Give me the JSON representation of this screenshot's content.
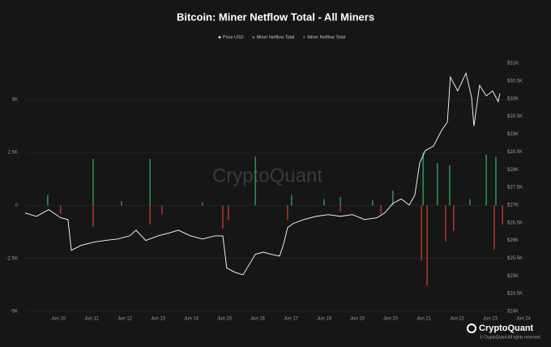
{
  "chart_data": {
    "type": "combo",
    "title": "Bitcoin: Miner Netflow Total - All Miners",
    "watermark": "CryptoQuant",
    "brand": "CryptoQuant",
    "copyright": "© CryptoQuant All rights reserved.",
    "grid": true,
    "xlim": [
      9,
      24
    ],
    "xticks": [
      {
        "value": 10,
        "label": "Jun 10"
      },
      {
        "value": 11,
        "label": "Jun 11"
      },
      {
        "value": 12,
        "label": "Jun 12"
      },
      {
        "value": 13,
        "label": "Jun 13"
      },
      {
        "value": 14,
        "label": "Jun 14"
      },
      {
        "value": 15,
        "label": "Jun 15"
      },
      {
        "value": 16,
        "label": "Jun 16"
      },
      {
        "value": 17,
        "label": "Jun 17"
      },
      {
        "value": 18,
        "label": "Jun 18"
      },
      {
        "value": 19,
        "label": "Jun 19"
      },
      {
        "value": 20,
        "label": "Jun 20"
      },
      {
        "value": 21,
        "label": "Jun 21"
      },
      {
        "value": 22,
        "label": "Jun 22"
      },
      {
        "value": 23,
        "label": "Jun 23"
      },
      {
        "value": 24,
        "label": "Jun 24"
      }
    ],
    "ylim": [
      -5000,
      7100
    ],
    "yticks": [
      {
        "value": 5000,
        "label": "5K"
      },
      {
        "value": 2500,
        "label": "2.5K"
      },
      0,
      {
        "value": -2500,
        "label": "-2.5K"
      },
      {
        "value": -5000,
        "label": "-5K"
      }
    ],
    "y2lim": [
      24000,
      31230
    ],
    "y2ticks": [
      {
        "value": 31000,
        "label": "$31K"
      },
      {
        "value": 30500,
        "label": "$30.5K"
      },
      {
        "value": 30000,
        "label": "$30K"
      },
      {
        "value": 29500,
        "label": "$29.5K"
      },
      {
        "value": 29000,
        "label": "$29K"
      },
      {
        "value": 28500,
        "label": "$28.5K"
      },
      {
        "value": 28000,
        "label": "$28K"
      },
      {
        "value": 27500,
        "label": "$27.5K"
      },
      {
        "value": 27000,
        "label": "$27K"
      },
      {
        "value": 26500,
        "label": "$26.5K"
      },
      {
        "value": 26000,
        "label": "$26K"
      },
      {
        "value": 25500,
        "label": "$25.5K"
      },
      {
        "value": 25000,
        "label": "$25K"
      },
      {
        "value": 24500,
        "label": "$24.5K"
      },
      {
        "value": 24000,
        "label": "$24K"
      }
    ],
    "series": [
      {
        "name": "Price USD",
        "type": "line",
        "axis": "y2",
        "color": "#ffffff",
        "x": [
          9.0,
          9.34,
          9.71,
          10.07,
          10.29,
          10.39,
          10.68,
          11.05,
          11.41,
          11.78,
          12.15,
          12.34,
          12.63,
          13.0,
          13.37,
          13.61,
          13.98,
          14.34,
          14.71,
          14.95,
          15.07,
          15.32,
          15.56,
          15.68,
          15.93,
          16.17,
          16.41,
          16.66,
          16.78,
          16.9,
          17.07,
          17.39,
          17.76,
          18.12,
          18.49,
          18.85,
          19.22,
          19.59,
          19.83,
          20.07,
          20.32,
          20.56,
          20.73,
          20.88,
          21.05,
          21.29,
          21.54,
          21.71,
          21.8,
          22.02,
          22.27,
          22.44,
          22.51,
          22.68,
          22.88,
          23.07,
          23.24,
          23.29
        ],
        "values": [
          26775,
          26680,
          26870,
          26640,
          26590,
          25720,
          25860,
          25950,
          26000,
          26040,
          26130,
          26290,
          26000,
          26130,
          26220,
          26290,
          26130,
          26040,
          26130,
          26130,
          25220,
          25100,
          25030,
          25220,
          25610,
          25670,
          25610,
          25560,
          25900,
          26360,
          26480,
          26590,
          26680,
          26730,
          26680,
          26730,
          26590,
          26640,
          26780,
          27050,
          27170,
          27000,
          27280,
          28200,
          28540,
          28660,
          29110,
          29340,
          30610,
          30220,
          30720,
          30030,
          29230,
          30380,
          30080,
          30220,
          29920,
          30150
        ]
      },
      {
        "name": "Miner Netflow Total",
        "type": "bar",
        "color": "#2e9e5b",
        "x": [
          9.68,
          11.05,
          11.9,
          12.76,
          14.34,
          15.93,
          17.02,
          18.0,
          18.49,
          19.46,
          20.07,
          20.98,
          21.41,
          21.78,
          22.39,
          22.88,
          23.17
        ],
        "values": [
          500,
          2200,
          200,
          2200,
          150,
          2300,
          500,
          300,
          400,
          250,
          700,
          2500,
          2000,
          1900,
          300,
          2400,
          2300
        ]
      },
      {
        "name": "Miner Netflow Total",
        "type": "bar",
        "color": "#c0392b",
        "x": [
          10.07,
          11.05,
          12.76,
          13.12,
          14.95,
          15.12,
          16.9,
          18.49,
          19.71,
          20.93,
          21.1,
          21.66,
          21.9,
          23.12,
          23.37
        ],
        "values": [
          -400,
          -1000,
          -900,
          -400,
          -1100,
          -700,
          -700,
          -300,
          -400,
          -2600,
          -3800,
          -1700,
          -1200,
          -2100,
          -900
        ]
      }
    ]
  }
}
